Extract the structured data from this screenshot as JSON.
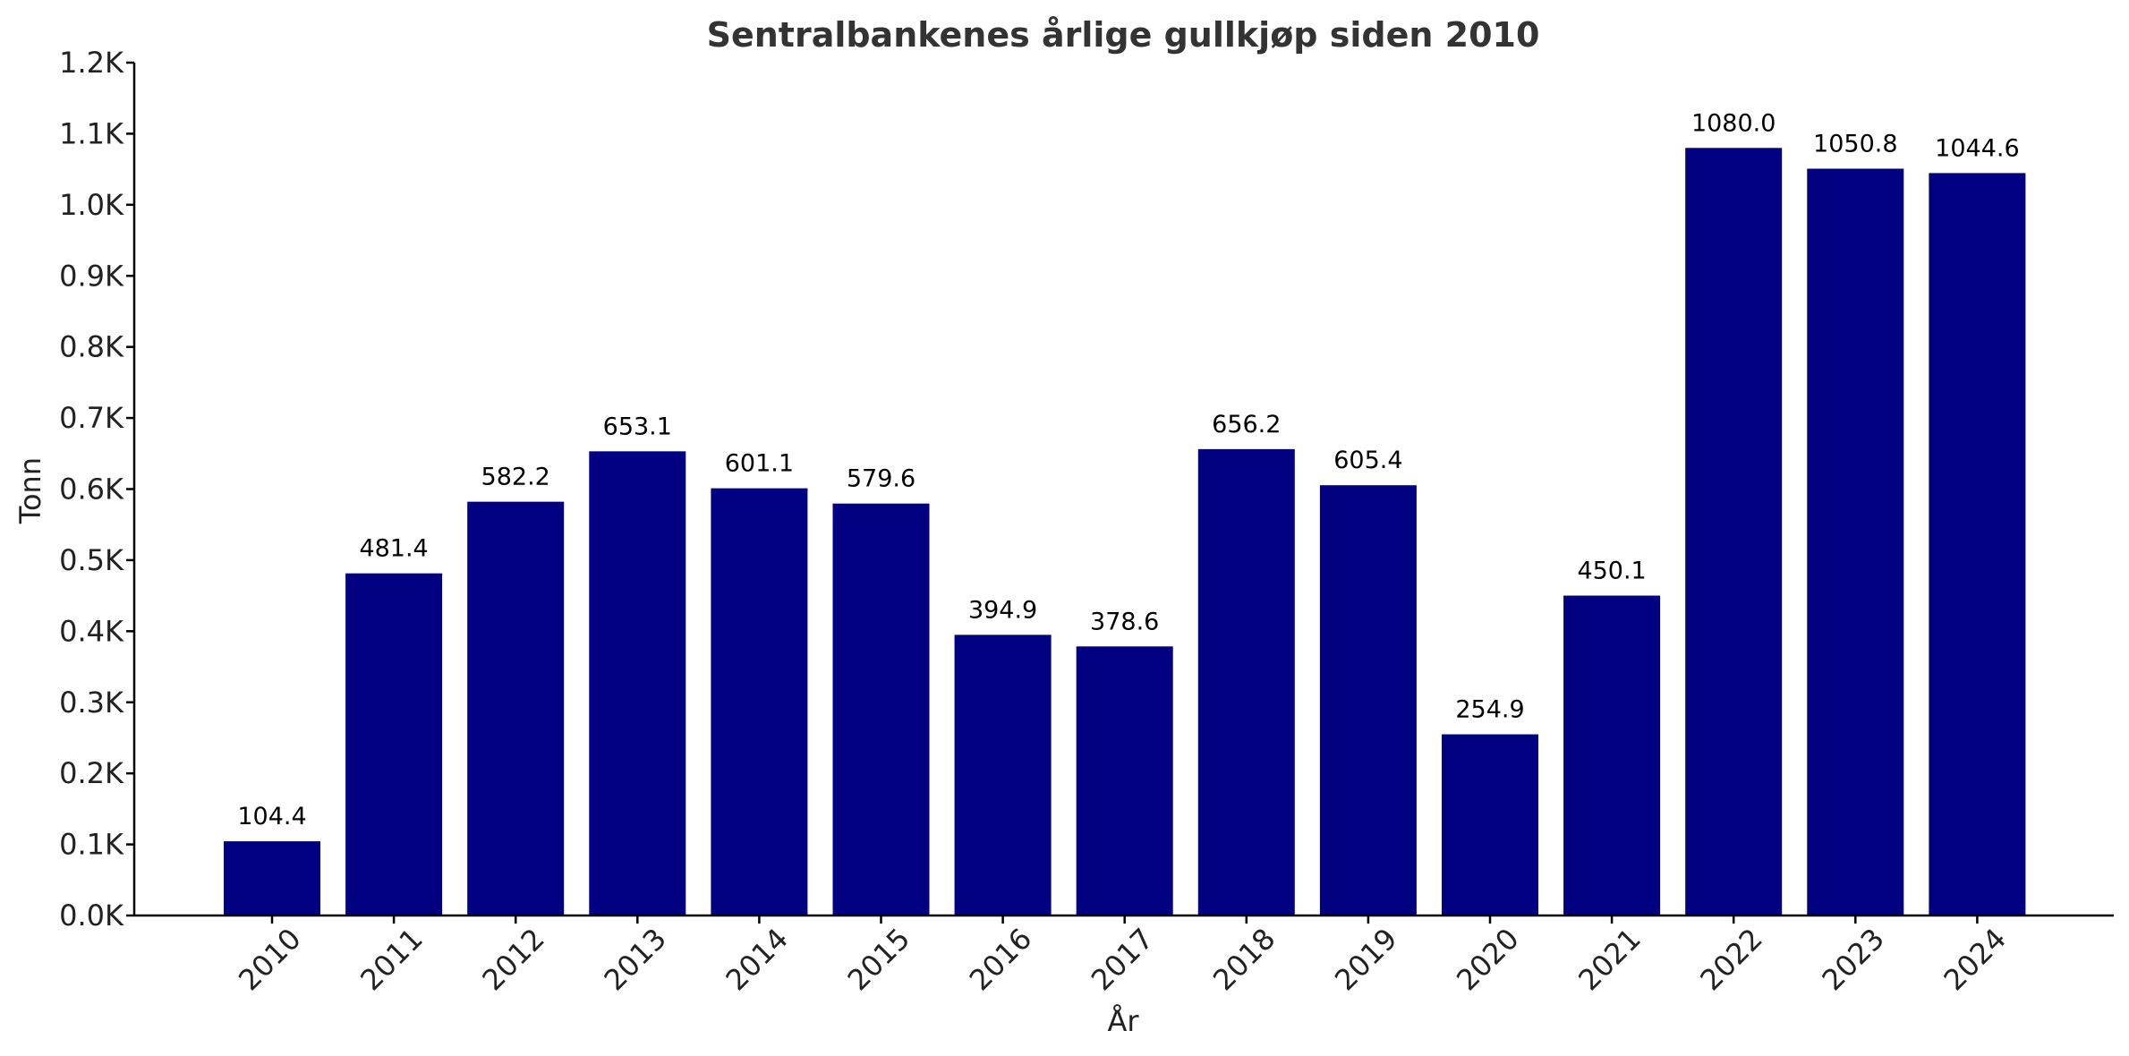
{
  "chart_data": {
    "type": "bar",
    "title": "Sentralbankenes årlige gullkjøp siden 2010",
    "xlabel": "År",
    "ylabel": "Tonn",
    "categories": [
      "2010",
      "2011",
      "2012",
      "2013",
      "2014",
      "2015",
      "2016",
      "2017",
      "2018",
      "2019",
      "2020",
      "2021",
      "2022",
      "2023",
      "2024"
    ],
    "values": [
      104.4,
      481.4,
      582.2,
      653.1,
      601.1,
      579.6,
      394.9,
      378.6,
      656.2,
      605.4,
      254.9,
      450.1,
      1080.0,
      1050.8,
      1044.6
    ],
    "value_labels": [
      "104.4",
      "481.4",
      "582.2",
      "653.1",
      "601.1",
      "579.6",
      "394.9",
      "378.6",
      "656.2",
      "605.4",
      "254.9",
      "450.1",
      "1080.0",
      "1050.8",
      "1044.6"
    ],
    "ylim": [
      0,
      1200
    ],
    "yticks": [
      0,
      100,
      200,
      300,
      400,
      500,
      600,
      700,
      800,
      900,
      1000,
      1100,
      1200
    ],
    "ytick_labels": [
      "0.0K",
      "0.1K",
      "0.2K",
      "0.3K",
      "0.4K",
      "0.5K",
      "0.6K",
      "0.7K",
      "0.8K",
      "0.9K",
      "1.0K",
      "1.1K",
      "1.2K"
    ],
    "bar_color": "#000080",
    "grid": false,
    "legend": "none"
  }
}
